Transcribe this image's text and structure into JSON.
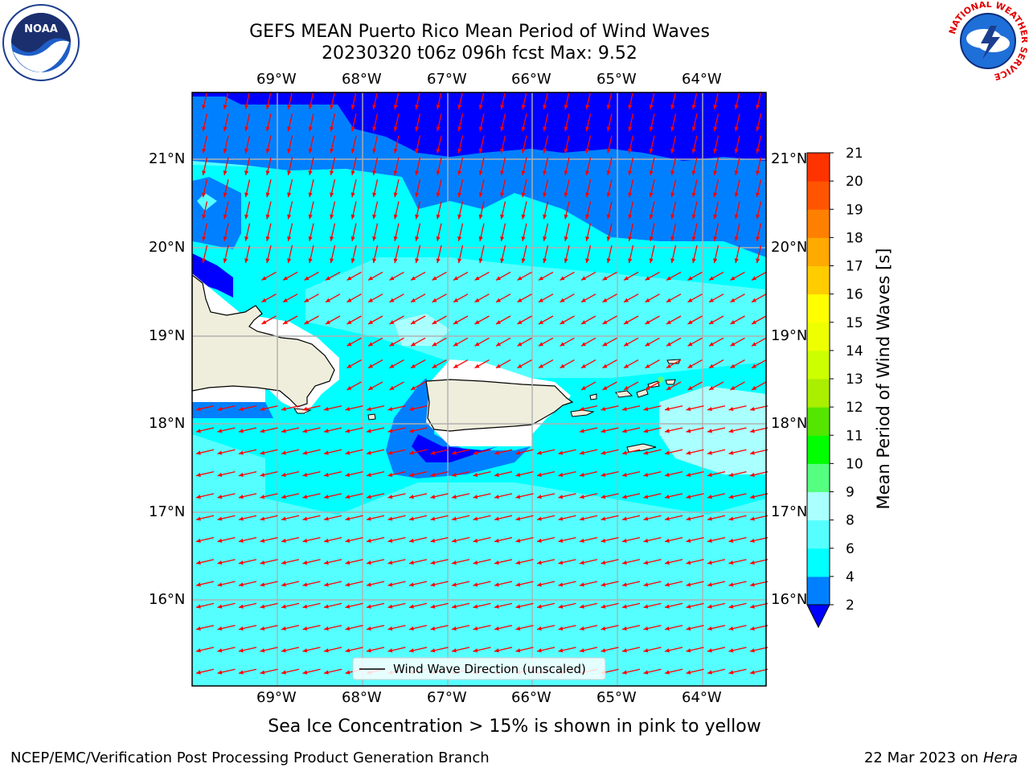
{
  "title": {
    "line1": "GEFS MEAN Puerto Rico Mean Period of Wind Waves",
    "line2": "20230320 t06z 096h fcst   Max: 9.52"
  },
  "logos": {
    "noara_text": "NOAA",
    "nws_ring_text": "NATIONAL WEATHER SERVICE"
  },
  "map": {
    "lon_labels": [
      "69°W",
      "68°W",
      "67°W",
      "66°W",
      "65°W",
      "64°W"
    ],
    "lat_labels": [
      "21°N",
      "20°N",
      "19°N",
      "18°N",
      "17°N",
      "16°N"
    ],
    "legend_label": "Wind Wave Direction (unscaled)",
    "arrow_color": "#ff0000"
  },
  "colorbar": {
    "label": "Mean Period of Wind Waves [s]",
    "ticks": [
      "2",
      "4",
      "6",
      "8",
      "9",
      "10",
      "11",
      "12",
      "13",
      "14",
      "15",
      "16",
      "17",
      "18",
      "19",
      "20",
      "21"
    ],
    "colors": [
      "#0000ff",
      "#0080ff",
      "#00ffff",
      "#55ffff",
      "#aaffff",
      "#55ff80",
      "#00ff00",
      "#55e600",
      "#aaee00",
      "#ccff00",
      "#eeff00",
      "#ffff00",
      "#ffcc00",
      "#ffaa00",
      "#ff8000",
      "#ff5500",
      "#ff3300",
      "#ff0000"
    ]
  },
  "sea_ice_caption": "Sea Ice Concentration > 15% is shown in pink to yellow",
  "footer": {
    "left": "NCEP/EMC/Verification Post Processing Product Generation Branch",
    "date": "22 Mar 2023 on",
    "host": "Hera"
  }
}
